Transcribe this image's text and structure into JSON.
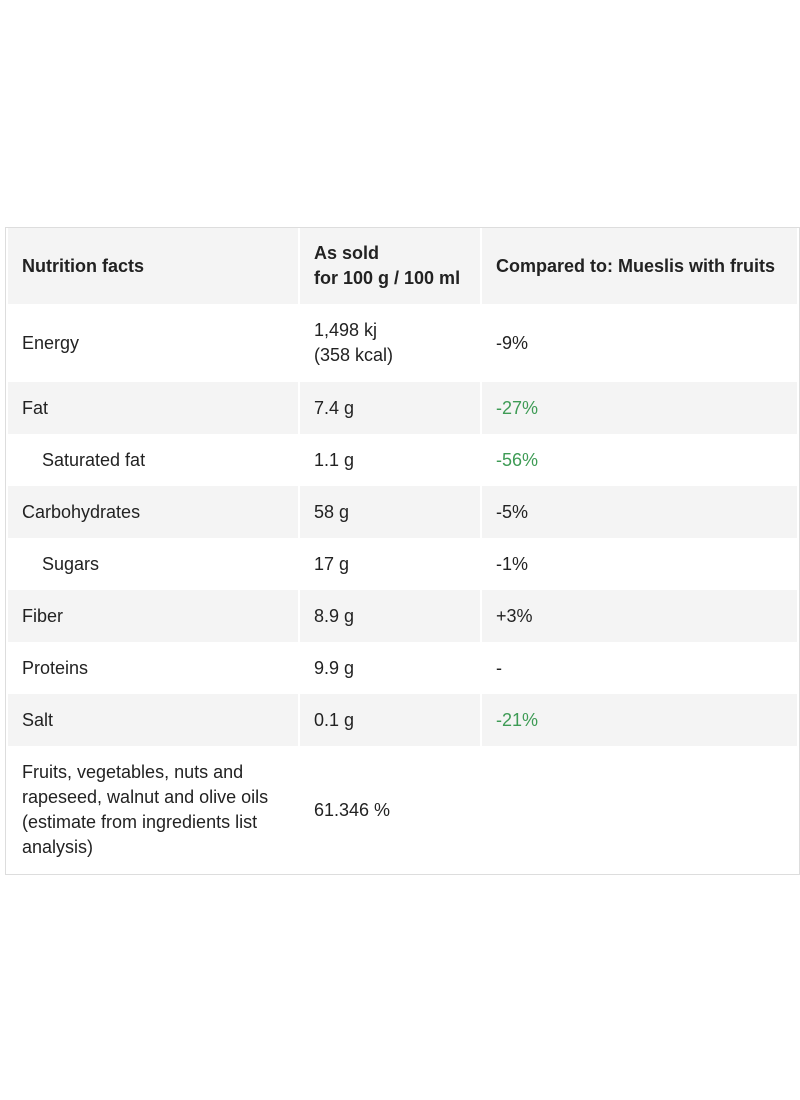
{
  "table": {
    "header": [
      "Nutrition facts",
      [
        "As sold",
        "for 100 g / 100 ml"
      ],
      "Compared to: Mueslis with fruits"
    ],
    "rows": [
      {
        "name": "Energy",
        "value": [
          "1,498 kj",
          "(358 kcal)"
        ],
        "compare": "-9%"
      },
      {
        "name": "Fat",
        "value": [
          "7.4 g"
        ],
        "compare": "-27%",
        "compare_color": "#3e9b55"
      },
      {
        "name": "Saturated fat",
        "sub": true,
        "value": [
          "1.1 g"
        ],
        "compare": "-56%",
        "compare_color": "#3e9b55"
      },
      {
        "name": "Carbohydrates",
        "value": [
          "58 g"
        ],
        "compare": "-5%"
      },
      {
        "name": "Sugars",
        "sub": true,
        "value": [
          "17 g"
        ],
        "compare": "-1%"
      },
      {
        "name": "Fiber",
        "value": [
          "8.9 g"
        ],
        "compare": "+3%"
      },
      {
        "name": "Proteins",
        "value": [
          "9.9 g"
        ],
        "compare": "-"
      },
      {
        "name": "Salt",
        "value": [
          "0.1 g"
        ],
        "compare": "-21%",
        "compare_color": "#3e9b55"
      },
      {
        "name": "Fruits, vegetables, nuts and rapeseed, walnut and olive oils (estimate from ingredients list analysis)",
        "value": [
          "61.346 %"
        ]
      }
    ]
  }
}
